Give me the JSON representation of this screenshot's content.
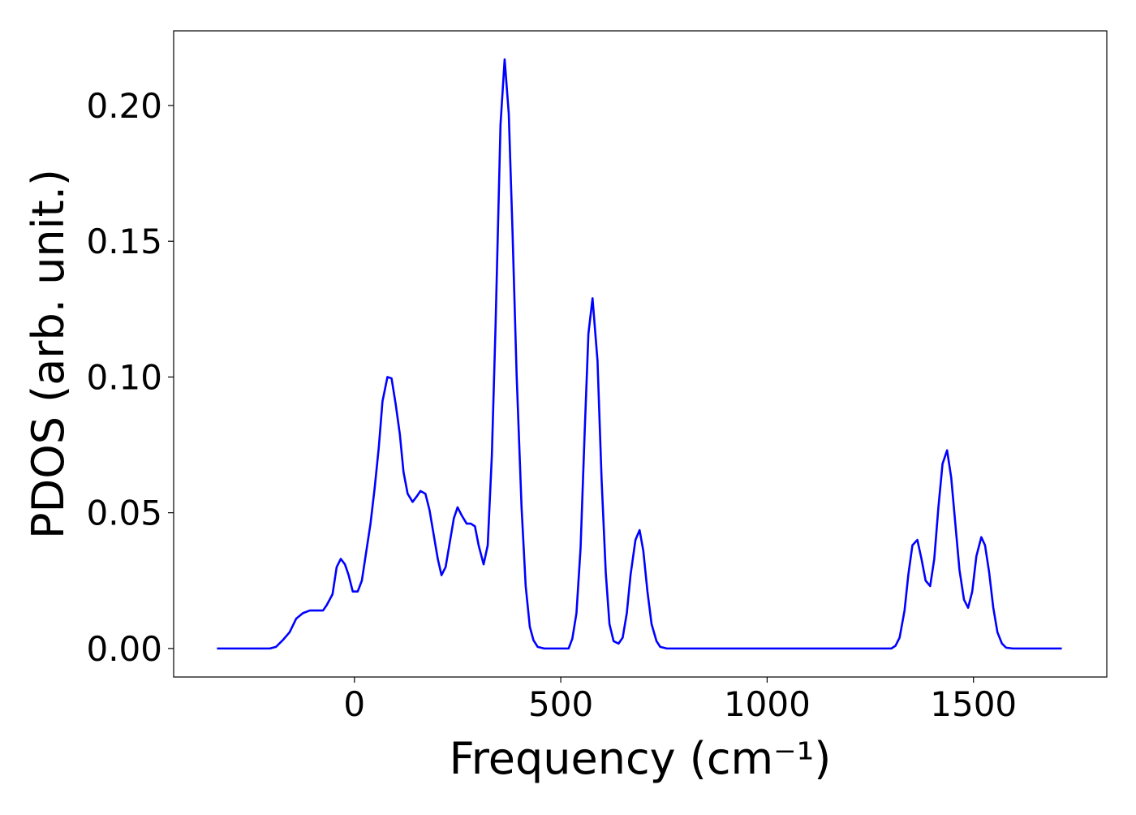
{
  "chart_data": {
    "type": "line",
    "xlabel": "Frequency (cm⁻¹)",
    "ylabel": "PDOS (arb. unit.)",
    "xlim": [
      -438,
      1823
    ],
    "ylim": [
      -0.0105,
      0.2275
    ],
    "xticks": [
      0,
      500,
      1000,
      1500
    ],
    "yticks": [
      {
        "value": 0,
        "label": "0.00"
      },
      {
        "value": 0.05,
        "label": "0.05"
      },
      {
        "value": 0.1,
        "label": "0.10"
      },
      {
        "value": 0.15,
        "label": "0.15"
      },
      {
        "value": 0.2,
        "label": "0.20"
      }
    ],
    "grid": false,
    "series": [
      {
        "name": "PDOS",
        "color": "#0000ff",
        "x": [
          -333,
          -205,
          -190,
          -174,
          -157,
          -141,
          -125,
          -108,
          -92,
          -76,
          -67,
          -53,
          -43,
          -33,
          -23,
          -14,
          -4,
          8,
          18,
          27,
          39,
          49,
          59,
          68,
          80,
          90,
          100,
          110,
          119,
          129,
          141,
          151,
          160,
          172,
          182,
          192,
          202,
          211,
          221,
          231,
          241,
          250,
          260,
          272,
          282,
          292,
          301,
          313,
          323,
          333,
          342,
          354,
          364,
          374,
          383,
          393,
          405,
          415,
          425,
          434,
          444,
          460,
          519,
          528,
          538,
          548,
          558,
          567,
          577,
          589,
          599,
          609,
          618,
          628,
          640,
          650,
          660,
          669,
          681,
          691,
          700,
          710,
          720,
          732,
          741,
          757,
          1301,
          1311,
          1321,
          1333,
          1342,
          1352,
          1364,
          1374,
          1384,
          1395,
          1405,
          1415,
          1425,
          1436,
          1446,
          1456,
          1466,
          1477,
          1487,
          1497,
          1507,
          1519,
          1528,
          1538,
          1548,
          1558,
          1569,
          1579,
          1595,
          1714
        ],
        "values": [
          0,
          0,
          0.0006,
          0.003,
          0.006,
          0.011,
          0.013,
          0.014,
          0.014,
          0.014,
          0.016,
          0.02,
          0.03,
          0.033,
          0.031,
          0.027,
          0.021,
          0.021,
          0.025,
          0.034,
          0.046,
          0.059,
          0.074,
          0.091,
          0.1,
          0.0995,
          0.09,
          0.079,
          0.065,
          0.057,
          0.054,
          0.056,
          0.058,
          0.057,
          0.051,
          0.042,
          0.033,
          0.027,
          0.03,
          0.039,
          0.048,
          0.052,
          0.049,
          0.046,
          0.046,
          0.045,
          0.038,
          0.031,
          0.038,
          0.071,
          0.119,
          0.193,
          0.217,
          0.197,
          0.154,
          0.101,
          0.052,
          0.023,
          0.008,
          0.003,
          0.0006,
          0,
          0,
          0.0036,
          0.013,
          0.037,
          0.08,
          0.116,
          0.129,
          0.106,
          0.062,
          0.028,
          0.009,
          0.0027,
          0.0018,
          0.004,
          0.013,
          0.027,
          0.04,
          0.0436,
          0.036,
          0.021,
          0.009,
          0.0027,
          0.0006,
          0,
          0,
          0.001,
          0.004,
          0.014,
          0.027,
          0.038,
          0.04,
          0.033,
          0.025,
          0.023,
          0.033,
          0.052,
          0.068,
          0.073,
          0.063,
          0.046,
          0.029,
          0.018,
          0.015,
          0.021,
          0.034,
          0.041,
          0.038,
          0.028,
          0.015,
          0.006,
          0.0018,
          0.0003,
          0,
          0
        ]
      }
    ]
  }
}
